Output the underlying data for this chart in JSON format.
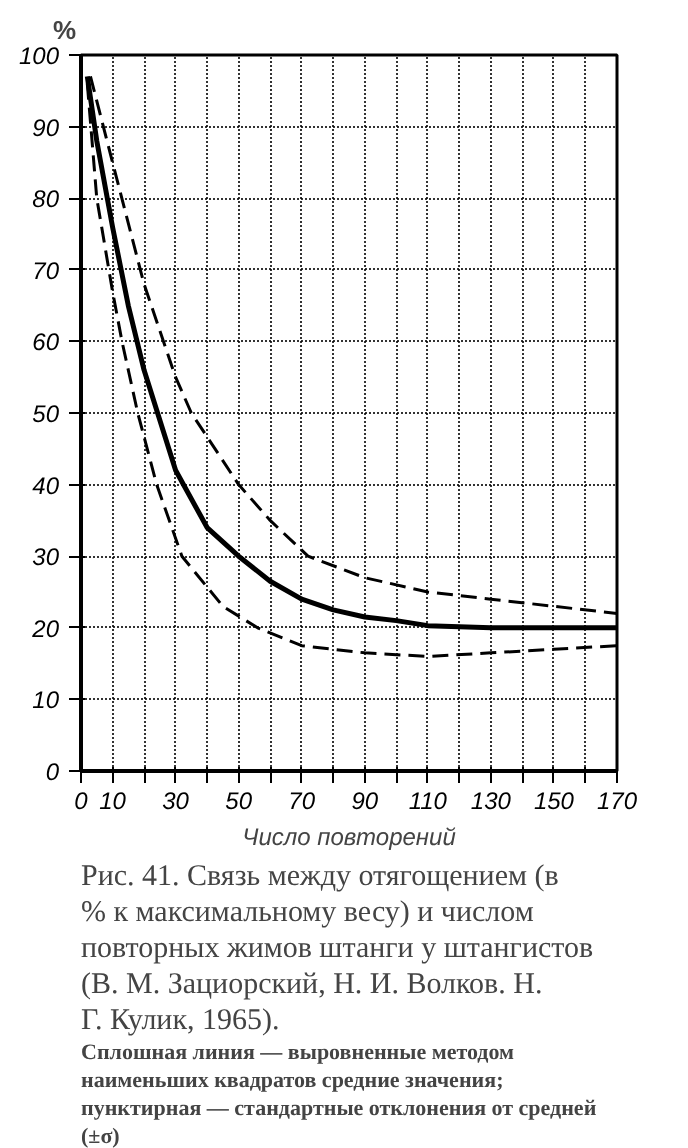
{
  "chart_data": {
    "type": "line",
    "title": "Рис. 41. Связь между отягощением (в % к максимальному весу) и числом повторных жимов штанги у штангистов (В. М. Зациорский, Н. И. Волков. Н. Г. Кулик, 1965).",
    "xlabel": "Число повторений",
    "ylabel": "%",
    "annotations": [
      "Сплошная линия — выровненные методом наименьших квадратов средние значения; пунктирная — стандартные отклонения от средней (±σ)"
    ],
    "series": [
      {
        "color": "#000000",
        "line_style": "solid",
        "x": [
          2,
          5,
          10,
          15,
          20,
          30,
          40,
          50,
          60,
          70,
          80,
          90,
          100,
          110,
          130,
          150,
          170
        ],
        "values": [
          97,
          88,
          76,
          65,
          56,
          42,
          34,
          30,
          26.5,
          24,
          22.5,
          21.5,
          21,
          20.3,
          20,
          20,
          20
        ]
      },
      {
        "color": "#000000",
        "line_style": "dashed",
        "x": [
          3,
          10,
          20,
          30,
          35,
          50,
          60,
          72,
          90,
          110,
          130,
          150,
          170
        ],
        "values": [
          97,
          85,
          68,
          55,
          50,
          40,
          35,
          30,
          27,
          25,
          24,
          23,
          22
        ]
      },
      {
        "color": "#000000",
        "line_style": "dashed",
        "x": [
          2,
          5,
          10,
          13,
          18,
          24,
          32,
          45,
          56,
          70,
          90,
          110,
          130,
          150,
          170
        ],
        "values": [
          96,
          80,
          67,
          60,
          50,
          40,
          30,
          23,
          20,
          17.5,
          16.5,
          16,
          16.5,
          17,
          17.5
        ]
      }
    ],
    "xlim": [
      0,
      170
    ],
    "ylim": [
      0,
      100
    ],
    "xticks": [
      0,
      10,
      {
        "value": 20,
        "label": null
      },
      30,
      {
        "value": 40,
        "label": null
      },
      50,
      {
        "value": 60,
        "label": null
      },
      70,
      {
        "value": 80,
        "label": null
      },
      90,
      {
        "value": 100,
        "label": null
      },
      110,
      {
        "value": 120,
        "label": null
      },
      130,
      {
        "value": 140,
        "label": null
      },
      150,
      {
        "value": 160,
        "label": null
      },
      170
    ],
    "yticks": [
      0,
      10,
      20,
      30,
      40,
      50,
      60,
      70,
      80,
      90,
      100
    ],
    "grid": true,
    "marker": "none"
  }
}
